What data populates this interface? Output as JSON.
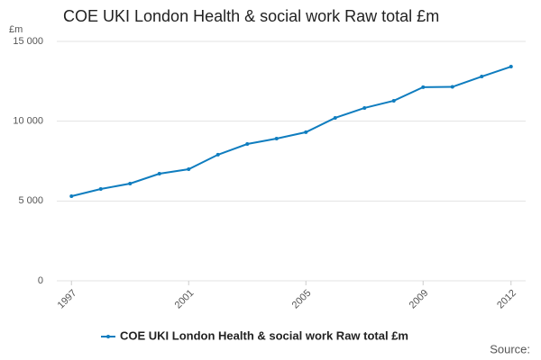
{
  "chart_data": {
    "type": "line",
    "title": "COE UKI London Health & social work Raw total £m",
    "y_label": "£m",
    "source": "Source:",
    "x": [
      1997,
      1998,
      1999,
      2000,
      2001,
      2002,
      2003,
      2004,
      2005,
      2006,
      2007,
      2008,
      2009,
      2010,
      2011,
      2012
    ],
    "series": [
      {
        "name": "COE UKI London Health & social work Raw total £m",
        "color": "#0f7dbf",
        "values": [
          5300,
          5750,
          6090,
          6710,
          6990,
          7900,
          8570,
          8910,
          9310,
          10210,
          10830,
          11280,
          12130,
          12150,
          12800,
          13420
        ]
      }
    ],
    "xlim": [
      1996.5,
      2012.5
    ],
    "xticks": [
      1997,
      2001,
      2005,
      2009,
      2012
    ],
    "ylim": [
      0,
      15000
    ],
    "yticks": [
      0,
      {
        "value": 5000,
        "label": "5 000"
      },
      {
        "value": 10000,
        "label": "10 000"
      },
      {
        "value": 15000,
        "label": "15 000"
      }
    ],
    "grid": true
  }
}
